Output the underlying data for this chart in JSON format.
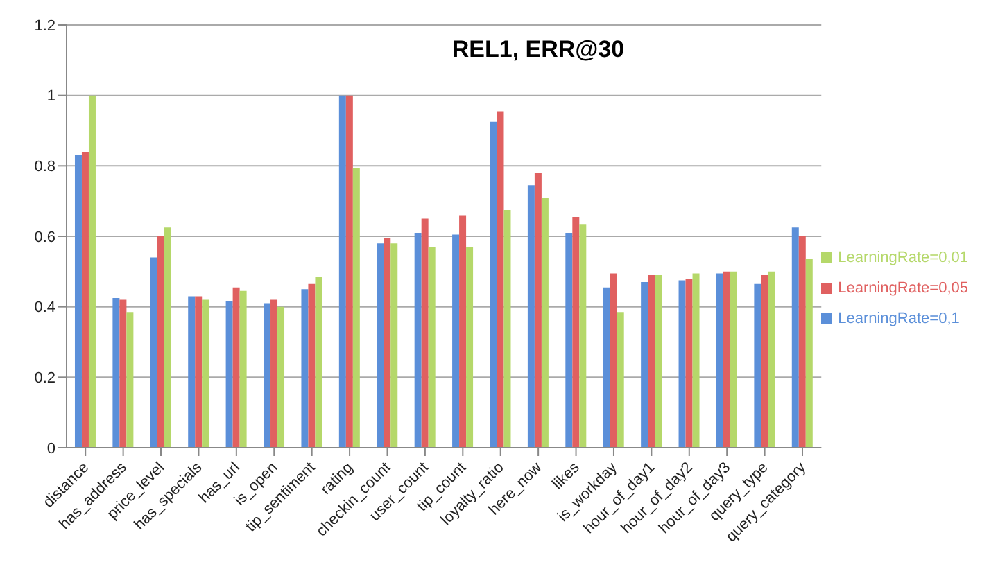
{
  "chart_data": {
    "type": "bar",
    "title": "REL1, ERR@30",
    "categories": [
      "distance",
      "has_address",
      "price_level",
      "has_specials",
      "has_url",
      "is_open",
      "tip_sentiment",
      "rating",
      "checkin_count",
      "user_count",
      "tip_count",
      "loyalty_ratio",
      "here_now",
      "likes",
      "is_workday",
      "hour_of_day1",
      "hour_of_day2",
      "hour_of_day3",
      "query_type",
      "query_category"
    ],
    "series": [
      {
        "name": "LearningRate=0,1",
        "color": "#5b8fd9",
        "values": [
          0.83,
          0.425,
          0.54,
          0.43,
          0.415,
          0.41,
          0.45,
          1.0,
          0.58,
          0.61,
          0.605,
          0.925,
          0.745,
          0.61,
          0.455,
          0.47,
          0.475,
          0.495,
          0.465,
          0.625
        ]
      },
      {
        "name": "LearningRate=0,05",
        "color": "#e06060",
        "values": [
          0.84,
          0.42,
          0.6,
          0.43,
          0.455,
          0.42,
          0.465,
          1.0,
          0.595,
          0.65,
          0.66,
          0.955,
          0.78,
          0.655,
          0.495,
          0.49,
          0.48,
          0.5,
          0.49,
          0.6
        ]
      },
      {
        "name": "LearningRate=0,01",
        "color": "#b5d86a",
        "values": [
          1.0,
          0.385,
          0.625,
          0.42,
          0.445,
          0.4,
          0.485,
          0.795,
          0.58,
          0.57,
          0.57,
          0.675,
          0.71,
          0.635,
          0.385,
          0.49,
          0.495,
          0.5,
          0.5,
          0.535
        ]
      }
    ],
    "ylim": [
      0,
      1.2
    ],
    "yticks": [
      0,
      0.2,
      0.4,
      0.6,
      0.8,
      1,
      1.2
    ],
    "grid": "y",
    "legend": "right"
  }
}
